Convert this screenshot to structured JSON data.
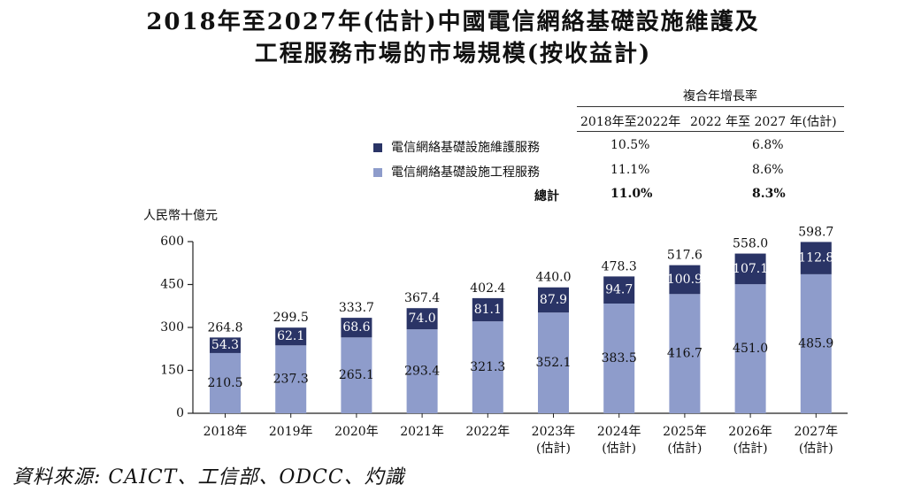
{
  "title_line1": "2018年至2027年(估計)中國電信網絡基礎設施維護及",
  "title_line2": "工程服務市場的市場規模(按收益計)",
  "cagr_table": {
    "header": "複合年增長率",
    "col1": "2018年至2022年",
    "col2": "2022 年至 2027 年(估計)",
    "rows": [
      {
        "label": "電信網絡基礎設施維護服務",
        "v1": "10.5%",
        "v2": "6.8%",
        "color": "#2a3466"
      },
      {
        "label": "電信網絡基礎設施工程服務",
        "v1": "11.1%",
        "v2": "8.6%",
        "color": "#8e9ccb"
      },
      {
        "label": "總計",
        "v1": "11.0%",
        "v2": "8.3%"
      }
    ]
  },
  "chart_data": {
    "type": "bar",
    "stacked": true,
    "ylabel": "人民幣十億元",
    "ylim": [
      0,
      600
    ],
    "yticks": [
      0,
      150,
      300,
      450,
      600
    ],
    "categories": [
      [
        "2018年"
      ],
      [
        "2019年"
      ],
      [
        "2020年"
      ],
      [
        "2021年"
      ],
      [
        "2022年"
      ],
      [
        "2023年",
        "(估計)"
      ],
      [
        "2024年",
        "(估計)"
      ],
      [
        "2025年",
        "(估計)"
      ],
      [
        "2026年",
        "(估計)"
      ],
      [
        "2027年",
        "(估計)"
      ]
    ],
    "series": [
      {
        "name": "電信網絡基礎設施工程服務",
        "color": "#8e9ccb",
        "label_color": "#111111",
        "values": [
          210.5,
          237.3,
          265.1,
          293.4,
          321.3,
          352.1,
          383.5,
          416.7,
          451.0,
          485.9
        ]
      },
      {
        "name": "電信網絡基礎設施維護服務",
        "color": "#2a3466",
        "label_color": "#ffffff",
        "values": [
          54.3,
          62.1,
          68.6,
          74.0,
          81.1,
          87.9,
          94.7,
          100.9,
          107.1,
          112.8
        ]
      }
    ],
    "totals": [
      264.8,
      299.5,
      333.7,
      367.4,
      402.4,
      440.0,
      478.3,
      517.6,
      558.0,
      598.7
    ],
    "value_labels": [
      [
        "210.5",
        "237.3",
        "265.1",
        "293.4",
        "321.3",
        "352.1",
        "383.5",
        "416.7",
        "451.0",
        "485.9"
      ],
      [
        "54.3",
        "62.1",
        "68.6",
        "74.0",
        "81.1",
        "87.9",
        "94.7",
        "100.9",
        "107.1",
        "112.8"
      ]
    ],
    "total_labels": [
      "264.8",
      "299.5",
      "333.7",
      "367.4",
      "402.4",
      "440.0",
      "478.3",
      "517.6",
      "558.0",
      "598.7"
    ]
  },
  "source": "資料來源: CAICT、工信部、ODCC、灼識"
}
